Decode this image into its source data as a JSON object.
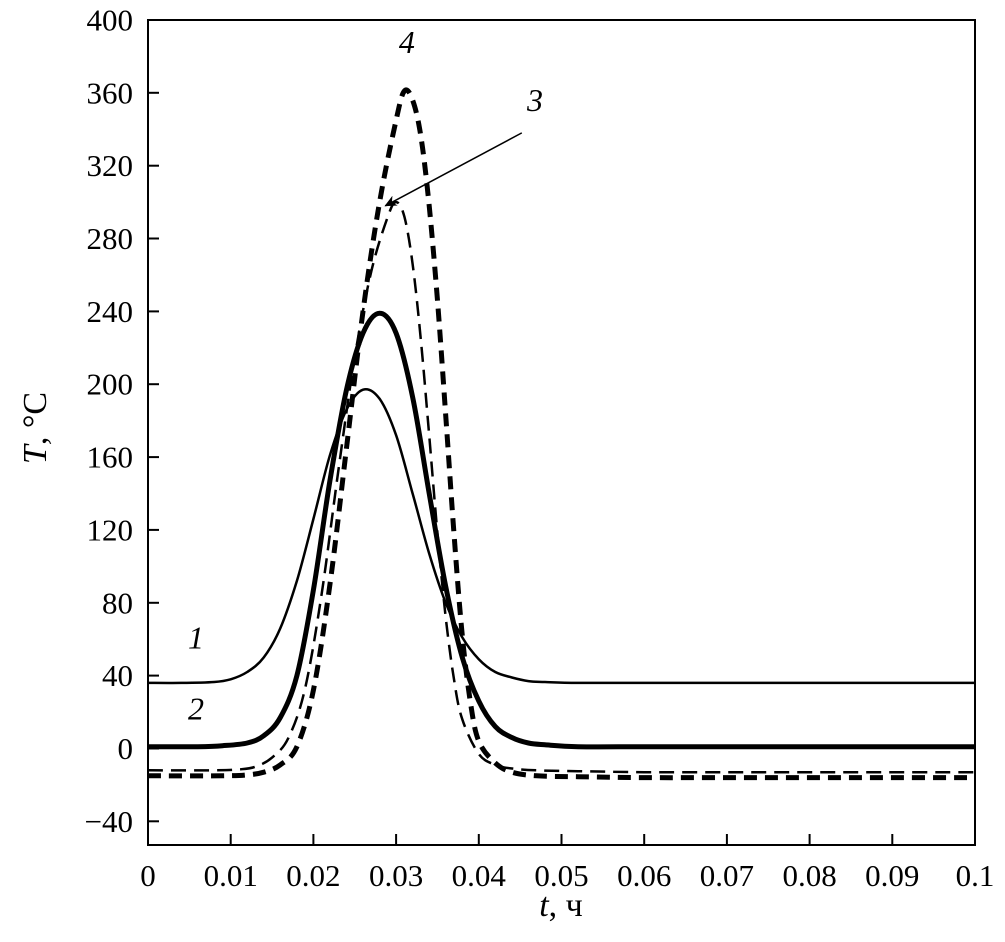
{
  "chart_data": {
    "type": "line",
    "title": "",
    "xlabel": "t, ч",
    "xlabel_var": "t",
    "xlabel_rest": ", ч",
    "ylabel": "T, °C",
    "ylabel_var": "T",
    "ylabel_rest": ", °C",
    "xlim": [
      0,
      0.1
    ],
    "ylim": [
      -53,
      400
    ],
    "grid": false,
    "legend_position": "none",
    "x_ticks": [
      0,
      0.01,
      0.02,
      0.03,
      0.04,
      0.05,
      0.06,
      0.07,
      0.08,
      0.09,
      0.1
    ],
    "x_tick_labels": [
      "0",
      "0.01",
      "0.02",
      "0.03",
      "0.04",
      "0.05",
      "0.06",
      "0.07",
      "0.08",
      "0.09",
      "0.1"
    ],
    "y_ticks": [
      400,
      360,
      320,
      280,
      240,
      200,
      160,
      120,
      80,
      40,
      0,
      -40
    ],
    "y_tick_labels": [
      "400",
      "360",
      "320",
      "280",
      "240",
      "200",
      "160",
      "120",
      "80",
      "40",
      "0",
      "−40"
    ],
    "colors": {
      "line": "#000000",
      "background": "#ffffff"
    },
    "series": [
      {
        "name": "1",
        "line": "thin-solid",
        "baseline": 36,
        "peak": {
          "t": 0.026,
          "T": 197
        },
        "points": [
          [
            0,
            36
          ],
          [
            0.004,
            36
          ],
          [
            0.008,
            36.5
          ],
          [
            0.01,
            38
          ],
          [
            0.012,
            42
          ],
          [
            0.014,
            50
          ],
          [
            0.016,
            66
          ],
          [
            0.018,
            92
          ],
          [
            0.02,
            126
          ],
          [
            0.022,
            161
          ],
          [
            0.024,
            186
          ],
          [
            0.026,
            197
          ],
          [
            0.028,
            192
          ],
          [
            0.03,
            172
          ],
          [
            0.032,
            140
          ],
          [
            0.034,
            107
          ],
          [
            0.036,
            80
          ],
          [
            0.038,
            61
          ],
          [
            0.04,
            49
          ],
          [
            0.042,
            42
          ],
          [
            0.044,
            39
          ],
          [
            0.046,
            37
          ],
          [
            0.048,
            36.5
          ],
          [
            0.052,
            36
          ],
          [
            0.06,
            36
          ],
          [
            0.07,
            36
          ],
          [
            0.08,
            36
          ],
          [
            0.09,
            36
          ],
          [
            0.1,
            36
          ]
        ]
      },
      {
        "name": "2",
        "line": "thick-solid",
        "baseline": 0,
        "peak": {
          "t": 0.028,
          "T": 239
        },
        "points": [
          [
            0,
            1
          ],
          [
            0.006,
            1
          ],
          [
            0.009,
            1.5
          ],
          [
            0.012,
            3
          ],
          [
            0.014,
            7
          ],
          [
            0.016,
            17
          ],
          [
            0.018,
            40
          ],
          [
            0.02,
            87
          ],
          [
            0.022,
            147
          ],
          [
            0.024,
            197
          ],
          [
            0.026,
            228
          ],
          [
            0.028,
            239
          ],
          [
            0.03,
            228
          ],
          [
            0.032,
            193
          ],
          [
            0.034,
            140
          ],
          [
            0.036,
            89
          ],
          [
            0.038,
            50
          ],
          [
            0.04,
            26
          ],
          [
            0.042,
            12
          ],
          [
            0.044,
            6
          ],
          [
            0.046,
            3
          ],
          [
            0.048,
            2
          ],
          [
            0.052,
            1
          ],
          [
            0.06,
            1
          ],
          [
            0.07,
            1
          ],
          [
            0.08,
            1
          ],
          [
            0.09,
            1
          ],
          [
            0.1,
            1
          ]
        ]
      },
      {
        "name": "3",
        "line": "thin-dashed",
        "baseline": -12,
        "peak": {
          "t": 0.03,
          "T": 300
        },
        "points": [
          [
            0,
            -12
          ],
          [
            0.008,
            -12
          ],
          [
            0.011,
            -11.5
          ],
          [
            0.013,
            -10
          ],
          [
            0.015,
            -5
          ],
          [
            0.017,
            6
          ],
          [
            0.019,
            33
          ],
          [
            0.021,
            85
          ],
          [
            0.023,
            152
          ],
          [
            0.025,
            215
          ],
          [
            0.027,
            262
          ],
          [
            0.029,
            292
          ],
          [
            0.03,
            300
          ],
          [
            0.031,
            292
          ],
          [
            0.032,
            266
          ],
          [
            0.033,
            224
          ],
          [
            0.034,
            172
          ],
          [
            0.035,
            118
          ],
          [
            0.036,
            72
          ],
          [
            0.037,
            38
          ],
          [
            0.038,
            16
          ],
          [
            0.04,
            -3
          ],
          [
            0.042,
            -9
          ],
          [
            0.044,
            -11
          ],
          [
            0.047,
            -12
          ],
          [
            0.052,
            -12.5
          ],
          [
            0.06,
            -13
          ],
          [
            0.07,
            -13
          ],
          [
            0.08,
            -13
          ],
          [
            0.09,
            -13
          ],
          [
            0.1,
            -13
          ]
        ]
      },
      {
        "name": "4",
        "line": "thick-dashed",
        "baseline": -15,
        "peak": {
          "t": 0.031,
          "T": 361
        },
        "points": [
          [
            0,
            -15
          ],
          [
            0.009,
            -15
          ],
          [
            0.012,
            -14.5
          ],
          [
            0.014,
            -13
          ],
          [
            0.016,
            -9
          ],
          [
            0.018,
            1
          ],
          [
            0.02,
            32
          ],
          [
            0.022,
            90
          ],
          [
            0.024,
            165
          ],
          [
            0.026,
            240
          ],
          [
            0.028,
            300
          ],
          [
            0.03,
            345
          ],
          [
            0.031,
            361
          ],
          [
            0.032,
            356
          ],
          [
            0.033,
            336
          ],
          [
            0.034,
            298
          ],
          [
            0.035,
            246
          ],
          [
            0.036,
            183
          ],
          [
            0.037,
            118
          ],
          [
            0.038,
            62
          ],
          [
            0.039,
            25
          ],
          [
            0.04,
            4
          ],
          [
            0.042,
            -8
          ],
          [
            0.044,
            -13
          ],
          [
            0.047,
            -15
          ],
          [
            0.052,
            -15.5
          ],
          [
            0.06,
            -16
          ],
          [
            0.07,
            -16
          ],
          [
            0.08,
            -16
          ],
          [
            0.09,
            -16
          ],
          [
            0.1,
            -16
          ]
        ]
      }
    ],
    "annotations": [
      {
        "text": "1",
        "t": 0.0058,
        "T": 55
      },
      {
        "text": "2",
        "t": 0.0058,
        "T": 16
      },
      {
        "text": "3",
        "t": 0.0468,
        "T": 350,
        "leader_from": [
          0.0452,
          338
        ],
        "leader_to": [
          0.0287,
          298
        ]
      },
      {
        "text": "4",
        "t": 0.0313,
        "T": 382
      }
    ]
  }
}
